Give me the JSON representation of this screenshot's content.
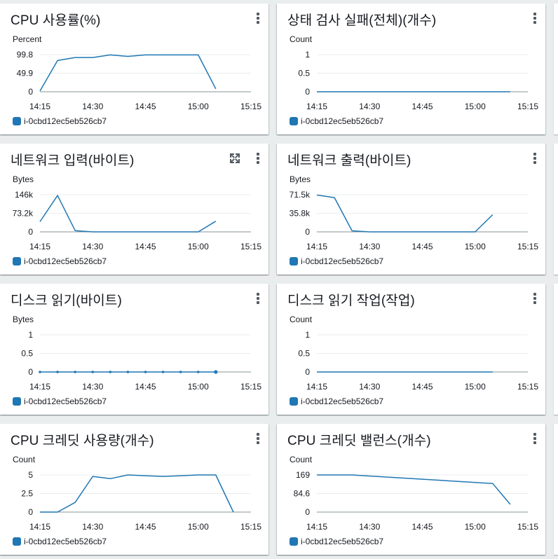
{
  "instance_id": "i-0cbd12ec5eb526cb7",
  "colors": {
    "series": "#1f77b4",
    "grid": "#eaeded",
    "axis": "#879596"
  },
  "icons": {
    "menu": "vertical-ellipsis-icon",
    "expand": "expand-arrows-icon"
  },
  "chart_data": [
    {
      "type": "line",
      "title": "CPU 사용률(%)",
      "ylabel": "Percent",
      "yticks": [
        "99.8",
        "49.9",
        "0"
      ],
      "ylim": [
        0,
        99.8
      ],
      "xticks": [
        "14:15",
        "14:30",
        "14:45",
        "15:00",
        "15:15"
      ],
      "xlim": [
        "14:15",
        "15:15"
      ],
      "series": [
        {
          "name": "i-0cbd12ec5eb526cb7",
          "x": [
            "14:15",
            "14:20",
            "14:25",
            "14:30",
            "14:35",
            "14:40",
            "14:45",
            "14:50",
            "14:55",
            "15:00",
            "15:05"
          ],
          "y": [
            2,
            84,
            92,
            92,
            99,
            95,
            99,
            99,
            99,
            99,
            8
          ]
        }
      ]
    },
    {
      "type": "line",
      "title": "상태 검사 실패(전체)(개수)",
      "ylabel": "Count",
      "yticks": [
        "1",
        "0.5",
        "0"
      ],
      "ylim": [
        0,
        1
      ],
      "xticks": [
        "14:15",
        "14:30",
        "14:45",
        "15:00",
        "15:15"
      ],
      "xlim": [
        "14:15",
        "15:15"
      ],
      "series": [
        {
          "name": "i-0cbd12ec5eb526cb7",
          "x": [
            "14:15",
            "15:10"
          ],
          "y": [
            0,
            0
          ]
        }
      ]
    },
    {
      "type": "line",
      "title": "네트워크 입력(바이트)",
      "ylabel": "Bytes",
      "yticks": [
        "146k",
        "73.2k",
        "0"
      ],
      "ylim": [
        0,
        146000
      ],
      "xticks": [
        "14:15",
        "14:30",
        "14:45",
        "15:00",
        "15:15"
      ],
      "xlim": [
        "14:15",
        "15:15"
      ],
      "series": [
        {
          "name": "i-0cbd12ec5eb526cb7",
          "x": [
            "14:15",
            "14:20",
            "14:25",
            "14:30",
            "14:35",
            "14:40",
            "14:45",
            "14:50",
            "14:55",
            "15:00",
            "15:05"
          ],
          "y": [
            40000,
            143000,
            5000,
            0,
            0,
            0,
            0,
            0,
            0,
            0,
            42000
          ]
        }
      ]
    },
    {
      "type": "line",
      "title": "네트워크 출력(바이트)",
      "ylabel": "Bytes",
      "yticks": [
        "71.5k",
        "35.8k",
        "0"
      ],
      "ylim": [
        0,
        71500
      ],
      "xticks": [
        "14:15",
        "14:30",
        "14:45",
        "15:00",
        "15:15"
      ],
      "xlim": [
        "14:15",
        "15:15"
      ],
      "series": [
        {
          "name": "i-0cbd12ec5eb526cb7",
          "x": [
            "14:15",
            "14:20",
            "14:25",
            "14:30",
            "14:35",
            "14:40",
            "14:45",
            "14:50",
            "14:55",
            "15:00",
            "15:05"
          ],
          "y": [
            71000,
            66000,
            2000,
            0,
            0,
            0,
            0,
            0,
            0,
            0,
            33000
          ]
        }
      ]
    },
    {
      "type": "line",
      "title": "디스크 읽기(바이트)",
      "ylabel": "Bytes",
      "yticks": [
        "1",
        "0.5",
        "0"
      ],
      "ylim": [
        0,
        1
      ],
      "xticks": [
        "14:15",
        "14:30",
        "14:45",
        "15:00",
        "15:15"
      ],
      "xlim": [
        "14:15",
        "15:15"
      ],
      "markers": true,
      "series": [
        {
          "name": "i-0cbd12ec5eb526cb7",
          "x": [
            "14:15",
            "14:20",
            "14:25",
            "14:30",
            "14:35",
            "14:40",
            "14:45",
            "14:50",
            "14:55",
            "15:00",
            "15:05"
          ],
          "y": [
            0,
            0,
            0,
            0,
            0,
            0,
            0,
            0,
            0,
            0,
            0
          ]
        }
      ]
    },
    {
      "type": "line",
      "title": "디스크 읽기 작업(작업)",
      "ylabel": "Count",
      "yticks": [
        "1",
        "0.5",
        "0"
      ],
      "ylim": [
        0,
        1
      ],
      "xticks": [
        "14:15",
        "14:30",
        "14:45",
        "15:00",
        "15:15"
      ],
      "xlim": [
        "14:15",
        "15:15"
      ],
      "series": [
        {
          "name": "i-0cbd12ec5eb526cb7",
          "x": [
            "14:15",
            "15:05"
          ],
          "y": [
            0,
            0
          ]
        }
      ]
    },
    {
      "type": "line",
      "title": "CPU 크레딧 사용량(개수)",
      "ylabel": "Count",
      "yticks": [
        "5",
        "2.5",
        "0"
      ],
      "ylim": [
        0,
        5
      ],
      "xticks": [
        "14:15",
        "14:30",
        "14:45",
        "15:00",
        "15:15"
      ],
      "xlim": [
        "14:15",
        "15:15"
      ],
      "series": [
        {
          "name": "i-0cbd12ec5eb526cb7",
          "x": [
            "14:15",
            "14:20",
            "14:25",
            "14:30",
            "14:35",
            "14:40",
            "14:45",
            "14:50",
            "14:55",
            "15:00",
            "15:05",
            "15:10"
          ],
          "y": [
            0,
            0,
            1.3,
            4.8,
            4.5,
            5,
            4.9,
            4.8,
            4.9,
            5,
            5,
            0
          ]
        }
      ]
    },
    {
      "type": "line",
      "title": "CPU 크레딧 밸런스(개수)",
      "ylabel": "Count",
      "yticks": [
        "169",
        "84.6",
        "0"
      ],
      "ylim": [
        0,
        169
      ],
      "xticks": [
        "14:15",
        "14:30",
        "14:45",
        "15:00",
        "15:15"
      ],
      "xlim": [
        "14:15",
        "15:15"
      ],
      "series": [
        {
          "name": "i-0cbd12ec5eb526cb7",
          "x": [
            "14:15",
            "14:25",
            "15:05",
            "15:10"
          ],
          "y": [
            169,
            169,
            130,
            35
          ]
        }
      ]
    }
  ]
}
